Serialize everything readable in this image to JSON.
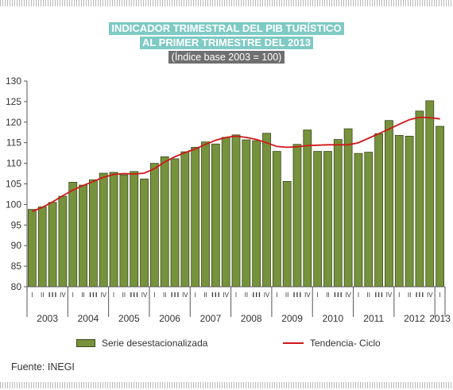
{
  "title_line1": "INDICADOR TRIMESTRAL DEL PIB TURÍSTICO",
  "title_line2": "AL PRIMER TRIMESTRE DEL 2013",
  "subtitle": "(Índice base 2003 = 100)",
  "source": "Fuente: INEGI",
  "colors": {
    "bar": "#76923c",
    "bar_edge": "#3b4a1c",
    "trend": "#d01818",
    "title_bg": "#7fcac4",
    "subtitle_bg": "#6f6f6f"
  },
  "chart_data": {
    "type": "bar",
    "ylim": [
      80,
      130
    ],
    "yticks": [
      80,
      85,
      90,
      95,
      100,
      105,
      110,
      115,
      120,
      125,
      130
    ],
    "grid": false,
    "legend_position": "bottom",
    "quarter_labels": [
      "I",
      "II",
      "III",
      "IV",
      "I",
      "II",
      "III",
      "IV",
      "I",
      "II",
      "III",
      "IV",
      "I",
      "II",
      "III",
      "IV",
      "I",
      "II",
      "III",
      "IV",
      "I",
      "II",
      "III",
      "IV",
      "I",
      "II",
      "III",
      "IV",
      "I",
      "II",
      "III",
      "IV",
      "I",
      "II",
      "III",
      "IV",
      "I",
      "II",
      "III",
      "IV",
      "I"
    ],
    "years": [
      "2003",
      "2004",
      "2005",
      "2006",
      "2007",
      "2008",
      "2009",
      "2010",
      "2011",
      "2012",
      "2013"
    ],
    "series": [
      {
        "name": "Serie desestacionalizada",
        "type": "bar",
        "values": [
          98.8,
          99.4,
          100.5,
          102.0,
          105.4,
          104.7,
          106.0,
          107.6,
          107.8,
          107.2,
          108.0,
          106.2,
          110.0,
          111.6,
          111.1,
          112.8,
          113.9,
          115.2,
          114.7,
          116.3,
          116.9,
          115.7,
          115.5,
          117.3,
          112.9,
          105.6,
          114.6,
          118.1,
          112.9,
          112.9,
          115.8,
          118.4,
          112.4,
          112.7,
          117.2,
          120.4,
          116.8,
          116.6,
          122.7,
          125.2,
          119.0
        ]
      },
      {
        "name": "Tendencia- Ciclo",
        "type": "line",
        "values": [
          98.3,
          99.3,
          100.6,
          102.1,
          103.5,
          104.6,
          105.6,
          106.6,
          107.3,
          107.5,
          107.4,
          107.6,
          108.7,
          110.3,
          111.6,
          112.6,
          113.5,
          114.6,
          115.6,
          116.3,
          116.6,
          116.3,
          115.8,
          115.0,
          114.1,
          113.9,
          114.0,
          114.3,
          114.4,
          114.5,
          114.5,
          114.5,
          115.0,
          116.1,
          117.2,
          118.3,
          119.5,
          120.6,
          121.2,
          121.1,
          120.8
        ]
      }
    ]
  }
}
